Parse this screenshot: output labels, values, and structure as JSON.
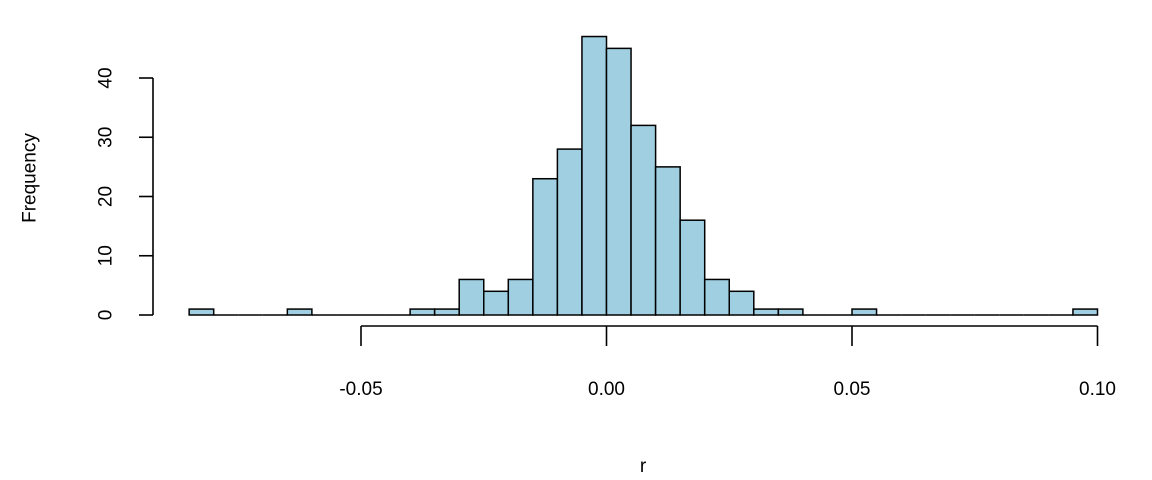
{
  "chart_data": {
    "type": "bar",
    "title": "",
    "xlabel": "r",
    "ylabel": "Frequency",
    "bar_color": "#9fcfe1",
    "bin_width": 0.005,
    "bin_start": -0.085,
    "bins": [
      {
        "x0": -0.085,
        "x1": -0.08,
        "count": 1
      },
      {
        "x0": -0.08,
        "x1": -0.075,
        "count": 0
      },
      {
        "x0": -0.075,
        "x1": -0.07,
        "count": 0
      },
      {
        "x0": -0.07,
        "x1": -0.065,
        "count": 0
      },
      {
        "x0": -0.065,
        "x1": -0.06,
        "count": 1
      },
      {
        "x0": -0.06,
        "x1": -0.055,
        "count": 0
      },
      {
        "x0": -0.055,
        "x1": -0.05,
        "count": 0
      },
      {
        "x0": -0.05,
        "x1": -0.045,
        "count": 0
      },
      {
        "x0": -0.045,
        "x1": -0.04,
        "count": 0
      },
      {
        "x0": -0.04,
        "x1": -0.035,
        "count": 1
      },
      {
        "x0": -0.035,
        "x1": -0.03,
        "count": 1
      },
      {
        "x0": -0.03,
        "x1": -0.025,
        "count": 6
      },
      {
        "x0": -0.025,
        "x1": -0.02,
        "count": 4
      },
      {
        "x0": -0.02,
        "x1": -0.015,
        "count": 6
      },
      {
        "x0": -0.015,
        "x1": -0.01,
        "count": 23
      },
      {
        "x0": -0.01,
        "x1": -0.005,
        "count": 28
      },
      {
        "x0": -0.005,
        "x1": 0.0,
        "count": 47
      },
      {
        "x0": 0.0,
        "x1": 0.005,
        "count": 45
      },
      {
        "x0": 0.005,
        "x1": 0.01,
        "count": 32
      },
      {
        "x0": 0.01,
        "x1": 0.015,
        "count": 25
      },
      {
        "x0": 0.015,
        "x1": 0.02,
        "count": 16
      },
      {
        "x0": 0.02,
        "x1": 0.025,
        "count": 6
      },
      {
        "x0": 0.025,
        "x1": 0.03,
        "count": 4
      },
      {
        "x0": 0.03,
        "x1": 0.035,
        "count": 1
      },
      {
        "x0": 0.035,
        "x1": 0.04,
        "count": 1
      },
      {
        "x0": 0.04,
        "x1": 0.045,
        "count": 0
      },
      {
        "x0": 0.045,
        "x1": 0.05,
        "count": 0
      },
      {
        "x0": 0.05,
        "x1": 0.055,
        "count": 1
      },
      {
        "x0": 0.055,
        "x1": 0.06,
        "count": 0
      },
      {
        "x0": 0.06,
        "x1": 0.065,
        "count": 0
      },
      {
        "x0": 0.065,
        "x1": 0.07,
        "count": 0
      },
      {
        "x0": 0.07,
        "x1": 0.075,
        "count": 0
      },
      {
        "x0": 0.075,
        "x1": 0.08,
        "count": 0
      },
      {
        "x0": 0.08,
        "x1": 0.085,
        "count": 0
      },
      {
        "x0": 0.085,
        "x1": 0.09,
        "count": 0
      },
      {
        "x0": 0.09,
        "x1": 0.095,
        "count": 0
      },
      {
        "x0": 0.095,
        "x1": 0.1,
        "count": 1
      }
    ],
    "x_ticks": [
      -0.05,
      0.0,
      0.05,
      0.1
    ],
    "x_tick_labels": [
      "-0.05",
      "0.00",
      "0.05",
      "0.10"
    ],
    "y_ticks": [
      0,
      10,
      20,
      30,
      40
    ],
    "y_tick_labels": [
      "0",
      "10",
      "20",
      "30",
      "40"
    ],
    "xlim": [
      -0.085,
      0.1
    ],
    "ylim": [
      0,
      47
    ],
    "grid": false
  }
}
